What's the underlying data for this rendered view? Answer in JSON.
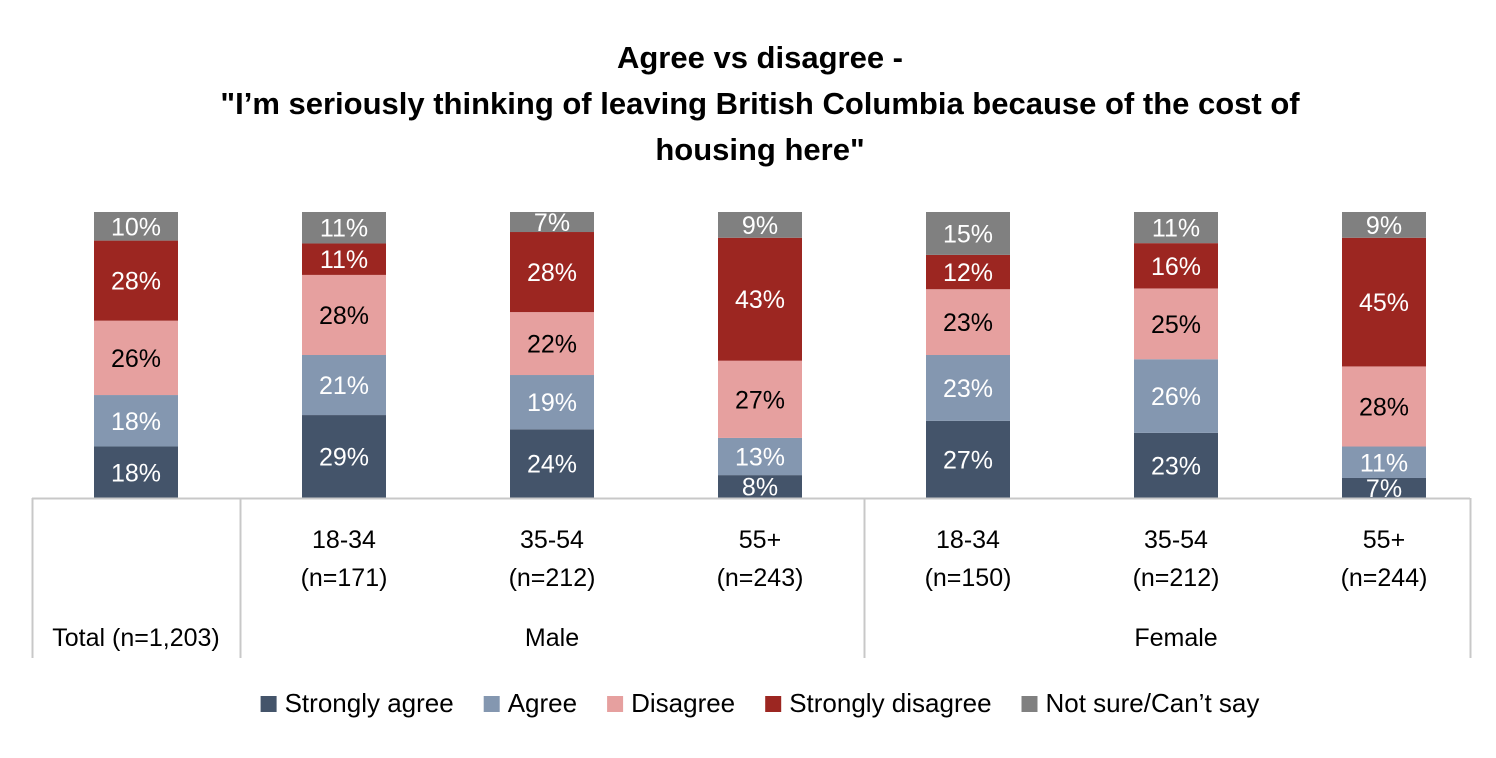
{
  "chart_data": {
    "type": "bar",
    "stacked": true,
    "title_lines": [
      "Agree vs disagree -",
      "\"I’m seriously thinking of leaving British Columbia because of the cost of",
      "housing here\""
    ],
    "categories": [
      {
        "lines": [
          "Total (n=1,203)"
        ]
      },
      {
        "lines": [
          "18-34",
          "(n=171)"
        ]
      },
      {
        "lines": [
          "35-54",
          "(n=212)"
        ]
      },
      {
        "lines": [
          "55+",
          "(n=243)"
        ]
      },
      {
        "lines": [
          "18-34",
          "(n=150)"
        ]
      },
      {
        "lines": [
          "35-54",
          "(n=212)"
        ]
      },
      {
        "lines": [
          "55+",
          "(n=244)"
        ]
      }
    ],
    "groups": [
      {
        "label": "Male",
        "members": [
          1,
          2,
          3
        ]
      },
      {
        "label": "Female",
        "members": [
          4,
          5,
          6
        ]
      }
    ],
    "series": [
      {
        "name": "Strongly agree",
        "color": "#44546A",
        "label_color": "#ffffff",
        "values": [
          18,
          29,
          24,
          8,
          27,
          23,
          7
        ]
      },
      {
        "name": "Agree",
        "color": "#8497B0",
        "label_color": "#ffffff",
        "values": [
          18,
          21,
          19,
          13,
          23,
          26,
          11
        ]
      },
      {
        "name": "Disagree",
        "color": "#E6A09F",
        "label_color": "#000000",
        "values": [
          26,
          28,
          22,
          27,
          23,
          25,
          28
        ]
      },
      {
        "name": "Strongly disagree",
        "color": "#9C2621",
        "label_color": "#ffffff",
        "values": [
          28,
          11,
          28,
          43,
          12,
          16,
          45
        ]
      },
      {
        "name": "Not sure/Can’t say",
        "color": "#808080",
        "label_color": "#ffffff",
        "values": [
          10,
          11,
          7,
          9,
          15,
          11,
          9
        ]
      }
    ],
    "value_suffix": "%",
    "ylim": [
      0,
      100
    ],
    "grid": false,
    "legend_position": "bottom"
  }
}
